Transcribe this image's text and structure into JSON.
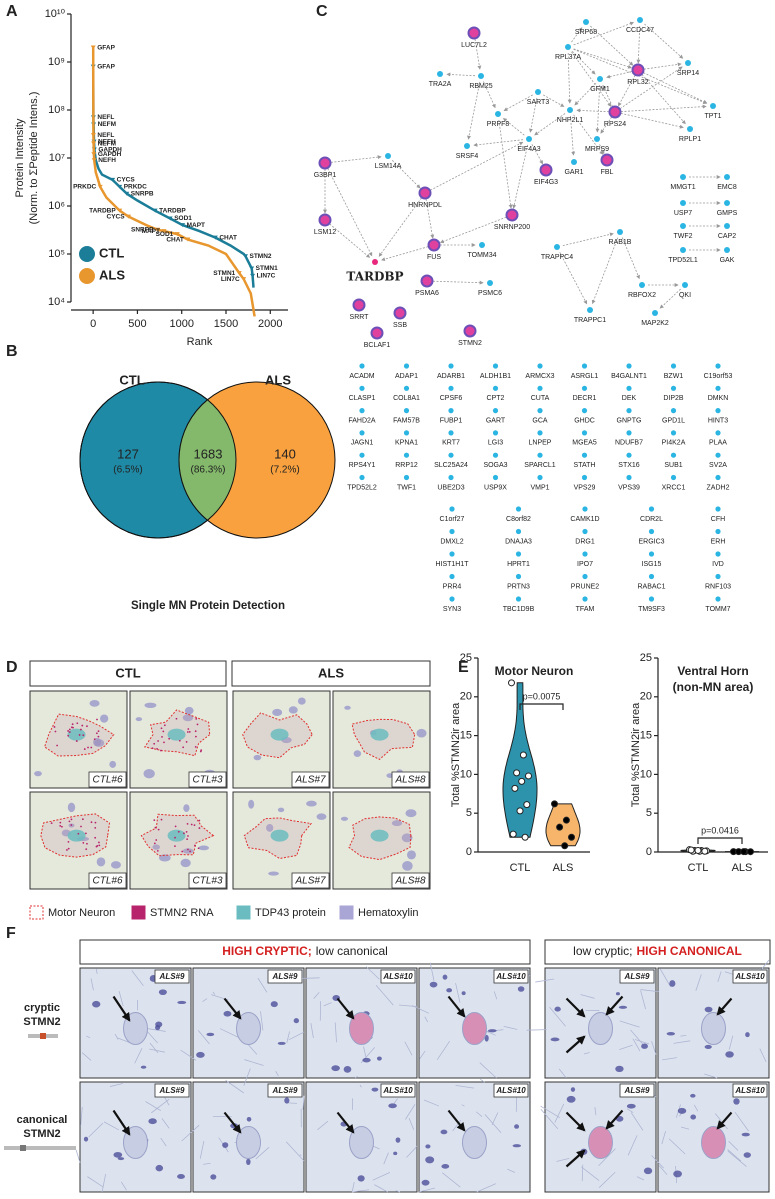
{
  "panel_labels": [
    "A",
    "B",
    "C",
    "D",
    "E",
    "F"
  ],
  "chart_data": [
    {
      "type": "line",
      "yscale": "log",
      "xlabel": "Rank",
      "ylabel": [
        "Protein Intensity",
        "(Norm. to ΣPeptide Intens.)"
      ],
      "xlim": [
        -250,
        2200
      ],
      "xticks": [
        0,
        500,
        1000,
        1500,
        2000
      ],
      "ylim": [
        10000.0,
        10000000000.0
      ],
      "yticks": [
        {
          "value": 10000.0,
          "label": "10⁴"
        },
        {
          "value": 100000.0,
          "label": "10⁵"
        },
        {
          "value": 1000000.0,
          "label": "10⁶"
        },
        {
          "value": 10000000.0,
          "label": "10⁷"
        },
        {
          "value": 100000000.0,
          "label": "10⁸"
        },
        {
          "value": 1000000000.0,
          "label": "10⁹"
        },
        {
          "value": 10000000000.0,
          "label": "10¹⁰"
        }
      ],
      "legend": "lower left",
      "series": [
        {
          "name": "CTL",
          "color": "#1b7d98",
          "x": [
            1,
            3,
            5,
            10,
            14,
            30,
            60,
            100,
            220,
            300,
            380,
            500,
            700,
            870,
            1010,
            1200,
            1380,
            1550,
            1700,
            1720,
            1790,
            1800,
            1810
          ],
          "values": [
            800000000.0,
            70000000.0,
            50000000.0,
            22000000.0,
            15000000.0,
            9000000.0,
            6000000.0,
            4500000.0,
            3500000.0,
            2500000.0,
            1800000.0,
            1300000.0,
            800000.0,
            550000.0,
            400000.0,
            300000.0,
            220000.0,
            150000.0,
            100000.0,
            90000.0,
            50000.0,
            35000.0,
            20000.0
          ],
          "points": [
            {
              "label": "GFAP",
              "x": 1,
              "y": 800000000.0
            },
            {
              "label": "NEFL",
              "x": 3,
              "y": 70000000.0
            },
            {
              "label": "NEFM",
              "x": 5,
              "y": 50000000.0
            },
            {
              "label": "NEFH",
              "x": 10,
              "y": 22000000.0
            },
            {
              "label": "GAPDH",
              "x": 14,
              "y": 15000000.0
            },
            {
              "label": "CYCS",
              "x": 220,
              "y": 3500000.0
            },
            {
              "label": "PRKDC",
              "x": 300,
              "y": 2500000.0
            },
            {
              "label": "SNRPB",
              "x": 380,
              "y": 1800000.0
            },
            {
              "label": "TARDBP",
              "x": 700,
              "y": 800000.0
            },
            {
              "label": "SOD1",
              "x": 870,
              "y": 550000.0
            },
            {
              "label": "MAPT",
              "x": 1010,
              "y": 400000.0
            },
            {
              "label": "CHAT",
              "x": 1380,
              "y": 220000.0
            },
            {
              "label": "STMN2",
              "x": 1720,
              "y": 90000.0
            },
            {
              "label": "STMN1",
              "x": 1790,
              "y": 50000.0
            },
            {
              "label": "LIN7C",
              "x": 1800,
              "y": 35000.0
            }
          ]
        },
        {
          "name": "ALS",
          "color": "#e8962e",
          "x": [
            1,
            3,
            5,
            8,
            12,
            30,
            80,
            150,
            300,
            400,
            600,
            730,
            800,
            950,
            1070,
            1300,
            1500,
            1650,
            1700,
            1780,
            1823
          ],
          "values": [
            2000000000.0,
            30000000.0,
            20000000.0,
            12000000.0,
            9000000.0,
            5000000.0,
            2500000.0,
            1500000.0,
            800000.0,
            600000.0,
            400000.0,
            320000.0,
            300000.0,
            260000.0,
            200000.0,
            150000.0,
            100000.0,
            40000.0,
            30000.0,
            15000.0,
            5000.0
          ],
          "points": [
            {
              "label": "GFAP",
              "x": 1,
              "y": 2000000000.0
            },
            {
              "label": "NEFL",
              "x": 3,
              "y": 30000000.0
            },
            {
              "label": "NEFM",
              "x": 5,
              "y": 20000000.0
            },
            {
              "label": "GAPDH",
              "x": 8,
              "y": 12000000.0
            },
            {
              "label": "NEFH",
              "x": 12,
              "y": 9000000.0
            },
            {
              "label": "PRKDC",
              "x": 80,
              "y": 2500000.0
            },
            {
              "label": "TARDBP",
              "x": 300,
              "y": 800000.0
            },
            {
              "label": "CYCS",
              "x": 400,
              "y": 600000.0
            },
            {
              "label": "SNRPB",
              "x": 730,
              "y": 320000.0
            },
            {
              "label": "MAPT",
              "x": 800,
              "y": 300000.0
            },
            {
              "label": "SOD1",
              "x": 950,
              "y": 260000.0
            },
            {
              "label": "CHAT",
              "x": 1070,
              "y": 200000.0
            },
            {
              "label": "STMN1",
              "x": 1650,
              "y": 40000.0
            },
            {
              "label": "LIN7C",
              "x": 1700,
              "y": 30000.0
            }
          ]
        }
      ]
    },
    {
      "type": "violin",
      "title": "Motor Neuron",
      "ylabel": "Total %STMN2ir area",
      "ylim": [
        0,
        25
      ],
      "yticks": [
        0,
        5,
        10,
        15,
        20,
        25
      ],
      "annotation": "p=0.0075",
      "groups": [
        {
          "name": "CTL",
          "color": "#2d93ad",
          "marker": "#ffffff",
          "values": [
            21.8,
            12.5,
            10.2,
            9.8,
            9.1,
            8.2,
            6.1,
            5.3,
            2.3,
            1.9
          ]
        },
        {
          "name": "ALS",
          "color": "#f6b56b",
          "marker": "#000000",
          "values": [
            6.2,
            4.1,
            3.2,
            1.9,
            0.8
          ]
        }
      ]
    },
    {
      "type": "violin",
      "title": "Ventral Horn",
      "subtitle": "(non-MN area)",
      "ylabel": "Total %STMN2ir area",
      "ylim": [
        0,
        25
      ],
      "yticks": [
        0,
        5,
        10,
        15,
        20,
        25
      ],
      "annotation": "p=0.0416",
      "groups": [
        {
          "name": "CTL",
          "color": "#2d93ad",
          "marker": "#ffffff",
          "values": [
            0.3,
            0.2,
            0.2,
            0.15,
            0.1,
            0.1,
            0.1,
            0.2,
            0.25
          ]
        },
        {
          "name": "ALS",
          "color": "#f6b56b",
          "marker": "#000000",
          "values": [
            0.05,
            0.05,
            0.05,
            0.04,
            0.05
          ]
        }
      ]
    }
  ],
  "venn": {
    "left_title": "CTL",
    "right_title": "ALS",
    "colors": [
      "#1f8aa6",
      "#84b96c",
      "#f9a13e"
    ],
    "regions": [
      {
        "count": 127,
        "percent": "(6.5%)"
      },
      {
        "count": 1683,
        "percent": "(86.3%)"
      },
      {
        "count": 140,
        "percent": "(7.2%)"
      }
    ],
    "caption": "Single MN Protein Detection"
  },
  "network": {
    "nodes": [
      {
        "label": "LUC7L2",
        "ring": true
      },
      {
        "label": "TRA2A"
      },
      {
        "label": "RBM25"
      },
      {
        "label": "SRP68"
      },
      {
        "label": "CCDC47"
      },
      {
        "label": "RPL37A"
      },
      {
        "label": "RPL32",
        "ring": true
      },
      {
        "label": "SRP14"
      },
      {
        "label": "SART3"
      },
      {
        "label": "GFM1"
      },
      {
        "label": "RPS24",
        "ring": true
      },
      {
        "label": "TPT1"
      },
      {
        "label": "NHP2L1"
      },
      {
        "label": "PRPF8"
      },
      {
        "label": "RPLP1"
      },
      {
        "label": "EIF4A3"
      },
      {
        "label": "MRPS9"
      },
      {
        "label": "SRSF4"
      },
      {
        "label": "GAR1"
      },
      {
        "label": "FBL",
        "ring": true
      },
      {
        "label": "EIF4G3",
        "ring": true
      },
      {
        "label": "G3BP1",
        "ring": true
      },
      {
        "label": "LSM14A"
      },
      {
        "label": "HNRNPDL",
        "ring": true
      },
      {
        "label": "LSM12",
        "ring": true
      },
      {
        "label": "SNRNP200",
        "ring": true
      },
      {
        "label": "FUS",
        "ring": true
      },
      {
        "label": "TOMM34"
      },
      {
        "label": "TARDBP",
        "emphasis": true
      },
      {
        "label": "TRAPPC4"
      },
      {
        "label": "RAB1B"
      },
      {
        "label": "PSMA6",
        "ring": true
      },
      {
        "label": "PSMC6"
      },
      {
        "label": "TRAPPC1"
      },
      {
        "label": "RBFOX2"
      },
      {
        "label": "QKI"
      },
      {
        "label": "MAP2K2"
      },
      {
        "label": "SRRT",
        "ring": true
      },
      {
        "label": "SSB",
        "ring": true
      },
      {
        "label": "BCLAF1",
        "ring": true
      },
      {
        "label": "STMN2",
        "ring": true
      },
      {
        "label": "MMGT1"
      },
      {
        "label": "EMC8"
      },
      {
        "label": "USP7"
      },
      {
        "label": "GMPS"
      },
      {
        "label": "TWF2"
      },
      {
        "label": "CAP2"
      },
      {
        "label": "TPD52L1"
      },
      {
        "label": "GAK"
      }
    ],
    "node_color": "#2bb5e3",
    "ring_color": "#e0409e",
    "ring_stroke": "#6d4fb8",
    "emphasis_color": "#e8287d",
    "gene_list": [
      "ACADM",
      "ADAP1",
      "ADARB1",
      "ALDH1B1",
      "ARMCX3",
      "ASRGL1",
      "B4GALNT1",
      "BZW1",
      "C19orf53",
      "CLASP1",
      "COL8A1",
      "CPSF6",
      "CPT2",
      "CUTA",
      "DECR1",
      "DEK",
      "DIP2B",
      "DMKN",
      "FAHD2A",
      "FAM57B",
      "FUBP1",
      "GART",
      "GCA",
      "GHDC",
      "GNPTG",
      "GPD1L",
      "HINT3",
      "JAGN1",
      "KPNA1",
      "KRT7",
      "LGI3",
      "LNPEP",
      "MGEA5",
      "NDUFB7",
      "PI4K2A",
      "PLAA",
      "RPS4Y1",
      "RRP12",
      "SLC25A24",
      "SOGA3",
      "SPARCL1",
      "STATH",
      "STX16",
      "SUB1",
      "SV2A",
      "TPD52L2",
      "TWF1",
      "UBE2D3",
      "USP9X",
      "VMP1",
      "VPS29",
      "VPS39",
      "XRCC1",
      "ZADH2",
      "C1orf27",
      "C8orf82",
      "CAMK1D",
      "CDR2L",
      "CFH",
      "DMXL2",
      "DNAJA3",
      "DRG1",
      "ERGIC3",
      "ERH",
      "HIST1H1T",
      "HPRT1",
      "IPO7",
      "ISG15",
      "IVD",
      "PRR4",
      "PRTN3",
      "PRUNE2",
      "RABAC1",
      "RNF103",
      "SYN3",
      "TBC1D9B",
      "TFAM",
      "TM9SF3",
      "TOMM7"
    ]
  },
  "panel_d": {
    "groups": [
      "CTL",
      "ALS"
    ],
    "tiles": [
      "CTL#6",
      "CTL#3",
      "ALS#7",
      "ALS#8",
      "CTL#6",
      "CTL#3",
      "ALS#7",
      "ALS#8"
    ],
    "legend": [
      {
        "label": "Motor Neuron",
        "color": "#e03030",
        "style": "dashed"
      },
      {
        "label": "STMN2 RNA",
        "color": "#b8246b",
        "style": "solid"
      },
      {
        "label": "TDP43 protein",
        "color": "#6bbcc0",
        "style": "solid"
      },
      {
        "label": "Hematoxylin",
        "color": "#a9a6d6",
        "style": "solid"
      }
    ]
  },
  "panel_f": {
    "headers": [
      {
        "parts": [
          {
            "text": "HIGH CRYPTIC;",
            "color": "#d42020"
          },
          {
            "text": "low canonical",
            "color": "#222222"
          }
        ]
      },
      {
        "parts": [
          {
            "text": "low cryptic;",
            "color": "#222222"
          },
          {
            "text": "HIGH CANONICAL",
            "color": "#d42020"
          }
        ]
      }
    ],
    "rows": [
      [
        "cryptic",
        "STMN2"
      ],
      [
        "canonical",
        "STMN2"
      ]
    ],
    "tiles": [
      [
        "ALS#9",
        "ALS#9",
        "ALS#10",
        "ALS#10",
        "ALS#9",
        "ALS#10"
      ],
      [
        "ALS#9",
        "ALS#9",
        "ALS#10",
        "ALS#10",
        "ALS#9",
        "ALS#10"
      ]
    ]
  }
}
